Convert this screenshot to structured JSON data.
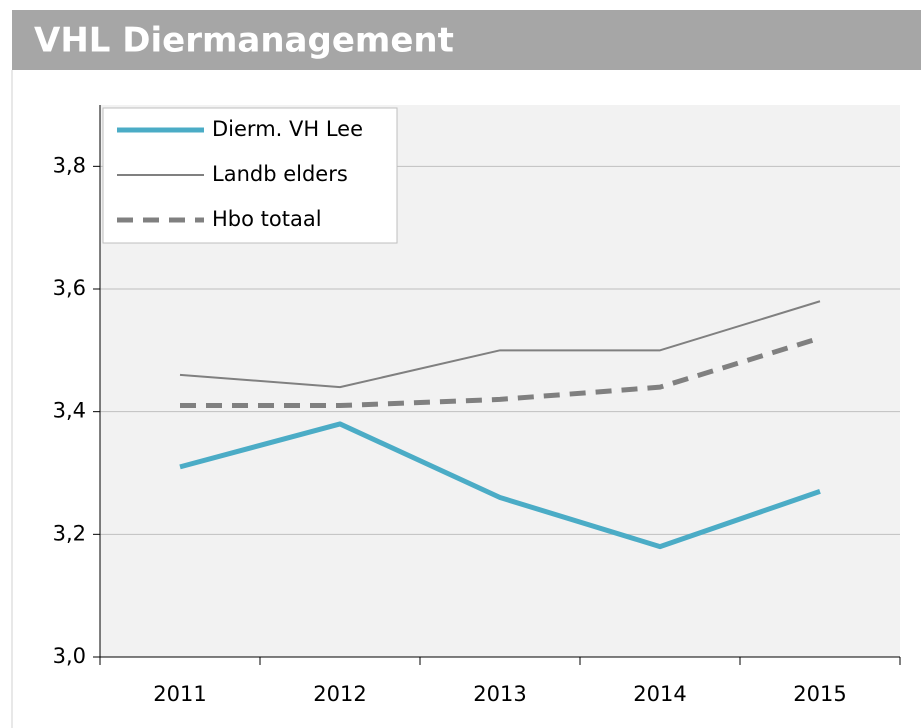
{
  "chart_data": {
    "type": "line",
    "title": "VHL Diermanagement",
    "categories": [
      "2011",
      "2012",
      "2013",
      "2014",
      "2015"
    ],
    "series": [
      {
        "name": "Dierm. VH Lee",
        "color": "#4bacc6",
        "values": [
          3.31,
          3.38,
          3.26,
          3.18,
          3.27
        ]
      },
      {
        "name": "Landb elders",
        "color": "#808080",
        "values": [
          3.46,
          3.44,
          3.5,
          3.5,
          3.58
        ]
      },
      {
        "name": "Hbo totaal",
        "color": "#808080",
        "dashed": true,
        "values": [
          3.41,
          3.41,
          3.42,
          3.44,
          3.52
        ]
      }
    ],
    "ylim": [
      3.0,
      3.9
    ],
    "yticks": [
      {
        "value": 3.0,
        "label": "3,0"
      },
      {
        "value": 3.2,
        "label": "3,2"
      },
      {
        "value": 3.4,
        "label": "3,4"
      },
      {
        "value": 3.6,
        "label": "3,6"
      },
      {
        "value": 3.8,
        "label": "3,8"
      }
    ],
    "grid": true,
    "legend": "upper left"
  }
}
